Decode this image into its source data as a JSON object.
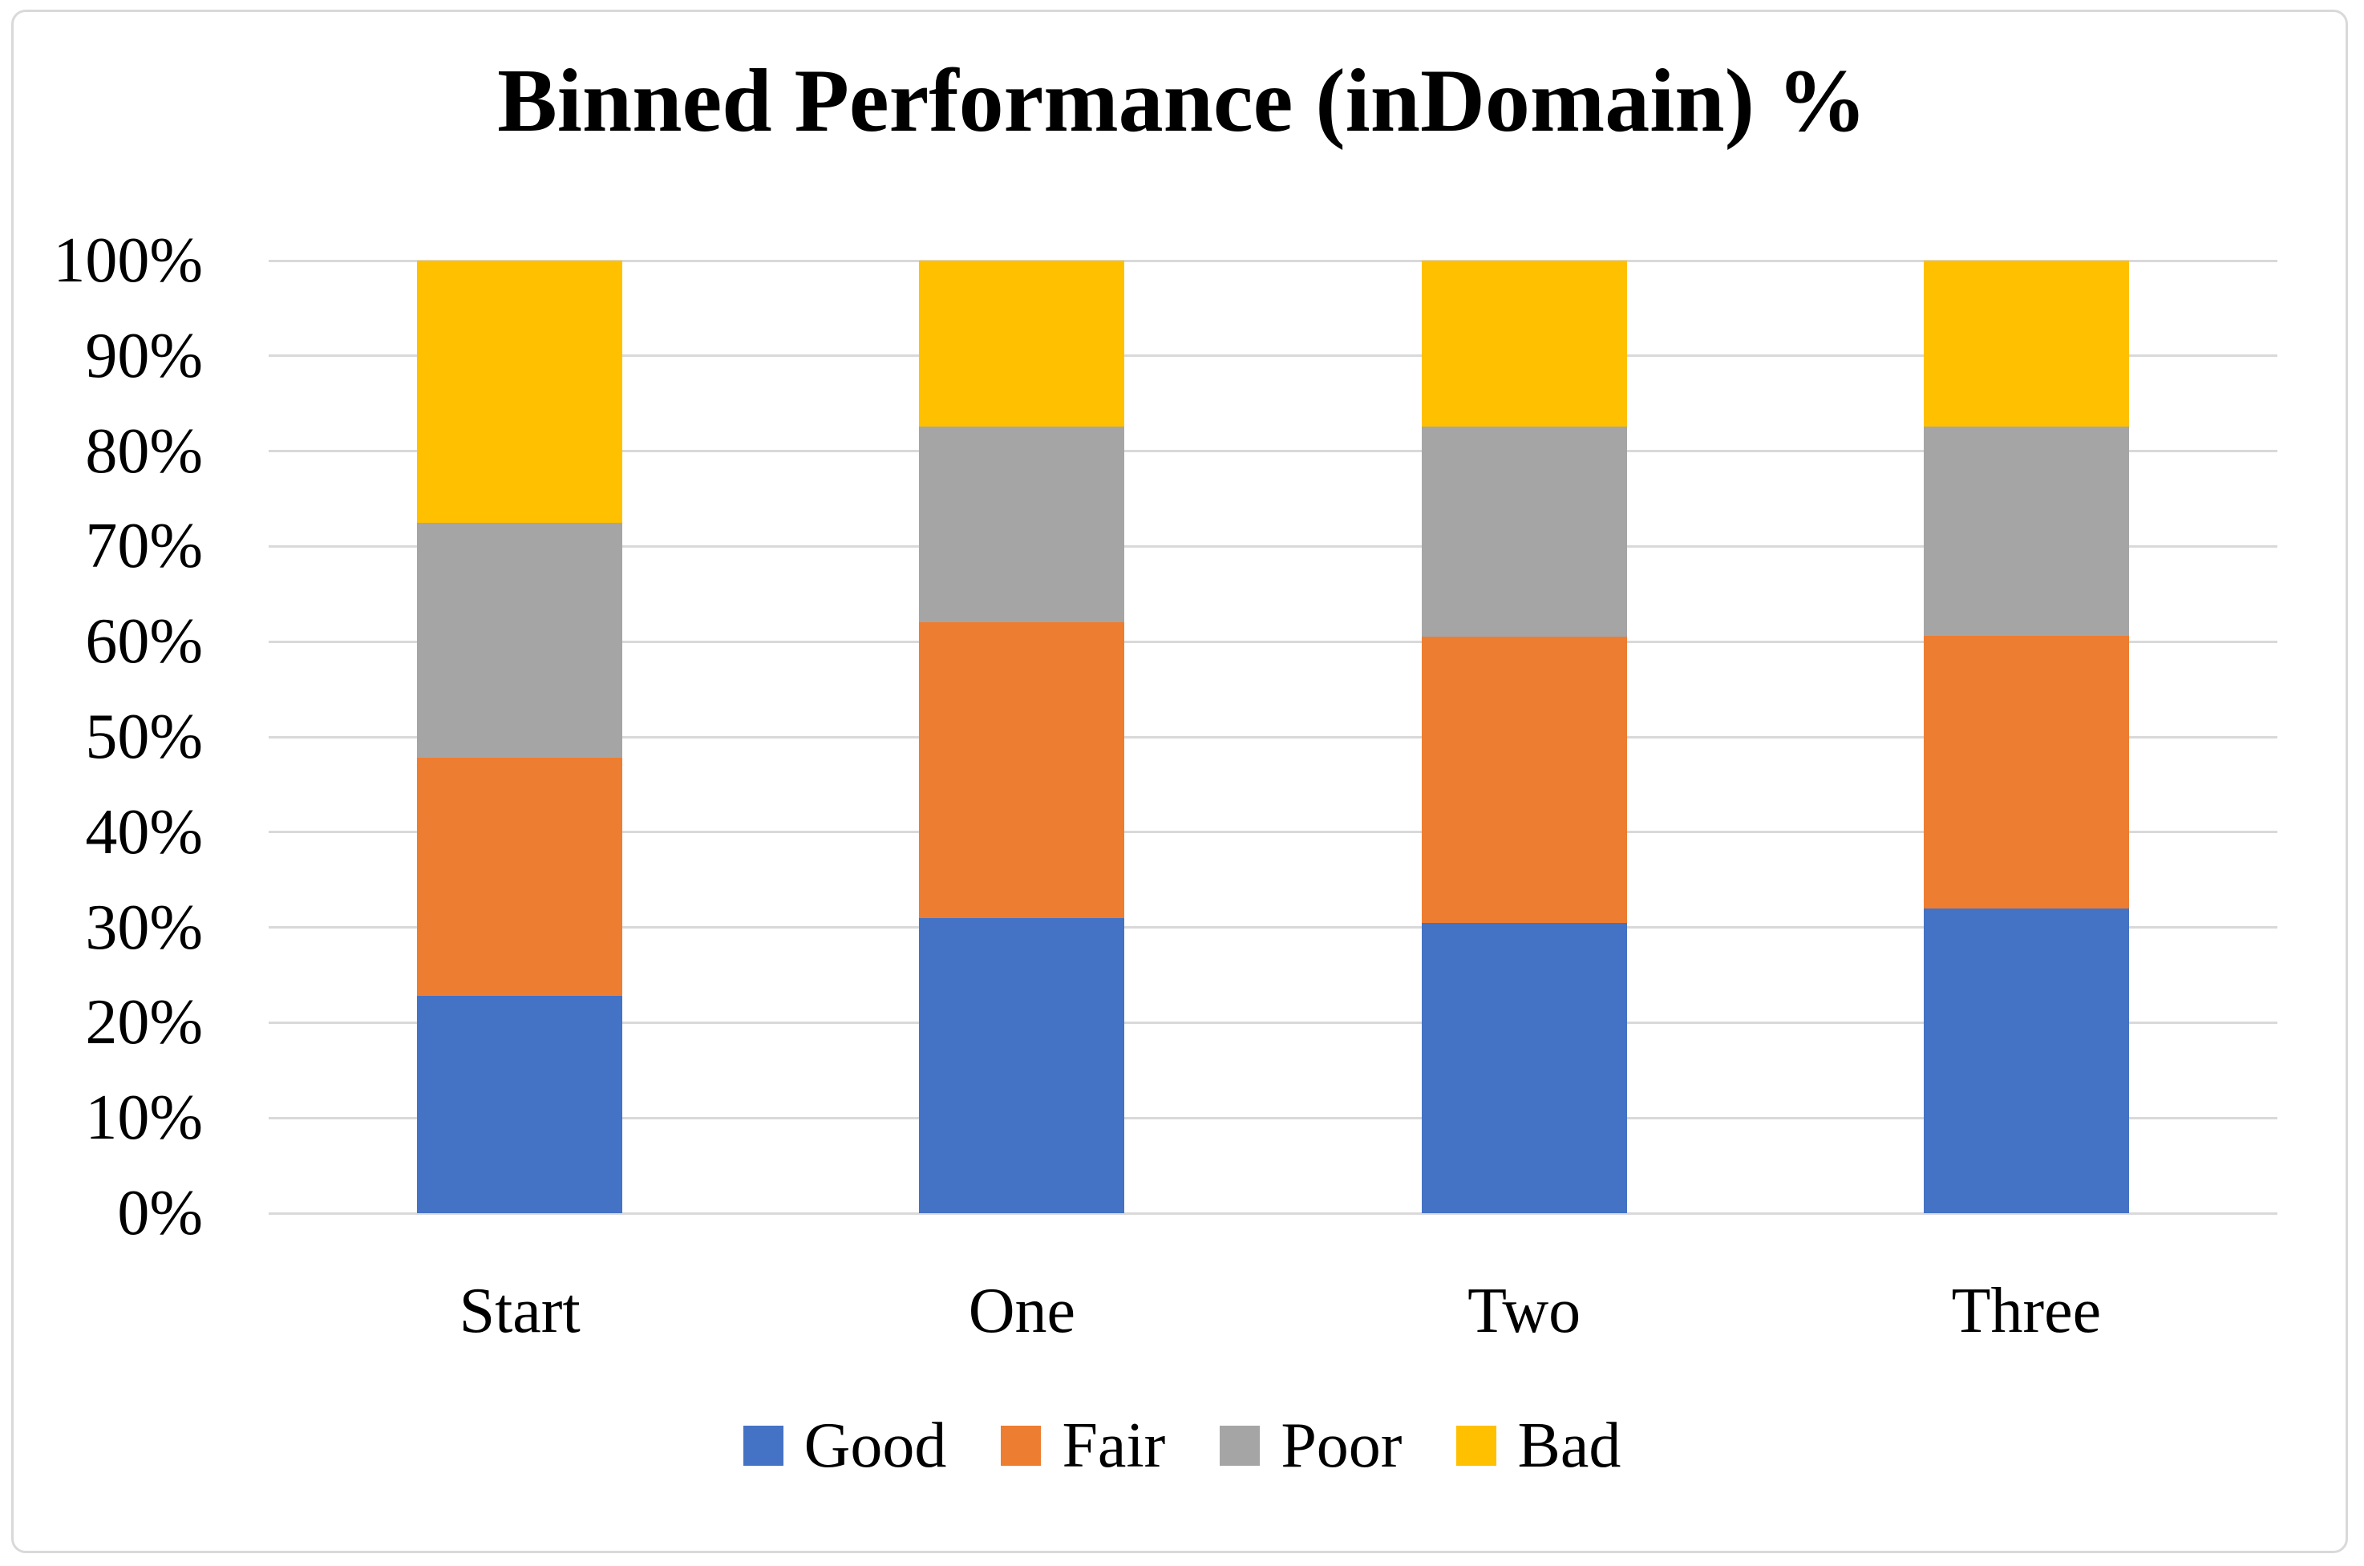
{
  "title": "Binned Performance (inDomain) %",
  "chart_data": {
    "type": "bar",
    "stacked": true,
    "percent_stacked": true,
    "title": "Binned Performance (inDomain) %",
    "categories": [
      "Start",
      "One",
      "Two",
      "Three"
    ],
    "series": [
      {
        "name": "Good",
        "color": "#4472C4",
        "values": [
          22.8,
          31.0,
          30.5,
          32.0
        ]
      },
      {
        "name": "Fair",
        "color": "#ED7D31",
        "values": [
          25.0,
          31.0,
          30.0,
          28.6
        ]
      },
      {
        "name": "Poor",
        "color": "#A5A5A5",
        "values": [
          24.7,
          20.6,
          22.1,
          22.0
        ]
      },
      {
        "name": "Bad",
        "color": "#FFC000",
        "values": [
          27.5,
          17.4,
          17.4,
          17.4
        ]
      }
    ],
    "y_axis": {
      "min": 0,
      "max": 100,
      "unit": "%",
      "tick_labels": [
        "100%",
        "90%",
        "80%",
        "70%",
        "60%",
        "50%",
        "40%",
        "30%",
        "20%",
        "10%",
        "0%"
      ]
    },
    "xlabel": "",
    "ylabel": "",
    "grid": true,
    "gridline_color": "#D9D9D9",
    "legend_position": "bottom",
    "legend": [
      "Good",
      "Fair",
      "Poor",
      "Bad"
    ]
  }
}
